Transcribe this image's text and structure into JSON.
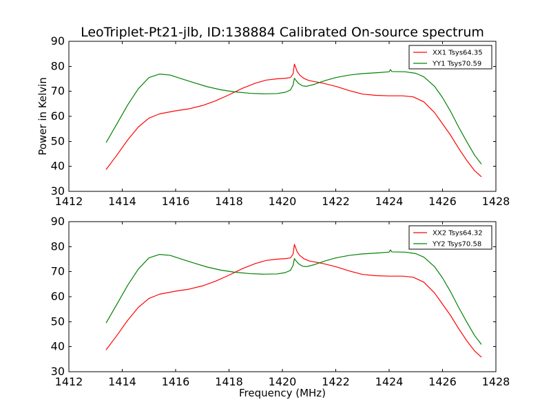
{
  "figure": {
    "title": "LeoTriplet-Pt21-jlb, ID:138884 Calibrated On-source spectrum"
  },
  "chart_data": [
    {
      "type": "line",
      "title": "LeoTriplet-Pt21-jlb, ID:138884 Calibrated On-source spectrum",
      "xlabel": "",
      "ylabel": "Power in Kelvin",
      "xlim": [
        1412,
        1428
      ],
      "ylim": [
        30,
        90
      ],
      "xticks": [
        1412,
        1414,
        1416,
        1418,
        1420,
        1422,
        1424,
        1426,
        1428
      ],
      "yticks": [
        30,
        40,
        50,
        60,
        70,
        80,
        90
      ],
      "legend_position": "top-right",
      "grid": false,
      "series": [
        {
          "name": "XX1 Tsys64.35",
          "color": "#ff0000",
          "x": [
            1413.4,
            1413.8,
            1414.2,
            1414.6,
            1415.0,
            1415.4,
            1416.0,
            1416.5,
            1417.0,
            1417.5,
            1418.0,
            1418.5,
            1419.0,
            1419.4,
            1419.8,
            1420.1,
            1420.3,
            1420.4,
            1420.45,
            1420.5,
            1420.55,
            1420.65,
            1420.8,
            1421.0,
            1421.5,
            1422.0,
            1422.5,
            1423.0,
            1423.5,
            1424.0,
            1424.5,
            1424.9,
            1425.3,
            1425.7,
            1426.0,
            1426.3,
            1426.6,
            1426.9,
            1427.2,
            1427.45
          ],
          "y": [
            38.8,
            44.5,
            50.5,
            55.7,
            59.3,
            61.0,
            62.2,
            63.0,
            64.3,
            66.2,
            68.6,
            71.2,
            73.3,
            74.5,
            75.0,
            75.2,
            75.5,
            77.0,
            80.9,
            79.5,
            78.0,
            76.5,
            75.2,
            74.3,
            73.3,
            72.0,
            70.3,
            68.9,
            68.4,
            68.2,
            68.2,
            67.8,
            65.8,
            61.5,
            57.0,
            52.5,
            47.3,
            42.5,
            38.3,
            35.9
          ]
        },
        {
          "name": "YY1 Tsys70.59",
          "color": "#008000",
          "x": [
            1413.4,
            1413.8,
            1414.2,
            1414.6,
            1415.0,
            1415.4,
            1415.8,
            1416.2,
            1416.7,
            1417.2,
            1417.7,
            1418.2,
            1418.8,
            1419.3,
            1419.8,
            1420.1,
            1420.3,
            1420.4,
            1420.45,
            1420.5,
            1420.6,
            1420.75,
            1420.9,
            1421.2,
            1421.6,
            1422.0,
            1422.5,
            1423.0,
            1423.5,
            1424.0,
            1424.05,
            1424.1,
            1424.6,
            1425.0,
            1425.3,
            1425.7,
            1426.0,
            1426.3,
            1426.6,
            1426.9,
            1427.2,
            1427.45
          ],
          "y": [
            49.6,
            57.0,
            64.5,
            71.0,
            75.5,
            76.9,
            76.5,
            75.1,
            73.4,
            71.8,
            70.6,
            69.8,
            69.2,
            69.0,
            69.1,
            69.6,
            70.5,
            72.5,
            75.2,
            74.5,
            73.2,
            72.2,
            72.0,
            72.8,
            74.3,
            75.5,
            76.5,
            77.1,
            77.4,
            77.8,
            78.7,
            77.9,
            77.8,
            77.2,
            75.8,
            72.0,
            67.5,
            62.0,
            55.8,
            50.0,
            44.5,
            41.0
          ]
        }
      ]
    },
    {
      "type": "line",
      "title": "",
      "xlabel": "Frequency (MHz)",
      "ylabel": "",
      "xlim": [
        1412,
        1428
      ],
      "ylim": [
        30,
        90
      ],
      "xticks": [
        1412,
        1414,
        1416,
        1418,
        1420,
        1422,
        1424,
        1426,
        1428
      ],
      "yticks": [
        30,
        40,
        50,
        60,
        70,
        80,
        90
      ],
      "legend_position": "top-right",
      "grid": false,
      "series": [
        {
          "name": "XX2 Tsys64.32",
          "color": "#ff0000",
          "x": [
            1413.4,
            1413.8,
            1414.2,
            1414.6,
            1415.0,
            1415.4,
            1416.0,
            1416.5,
            1417.0,
            1417.5,
            1418.0,
            1418.5,
            1419.0,
            1419.4,
            1419.8,
            1420.1,
            1420.3,
            1420.4,
            1420.45,
            1420.5,
            1420.55,
            1420.65,
            1420.8,
            1421.0,
            1421.5,
            1422.0,
            1422.5,
            1423.0,
            1423.5,
            1424.0,
            1424.5,
            1424.9,
            1425.3,
            1425.7,
            1426.0,
            1426.3,
            1426.6,
            1426.9,
            1427.2,
            1427.45
          ],
          "y": [
            38.8,
            44.5,
            50.5,
            55.7,
            59.3,
            61.0,
            62.2,
            63.0,
            64.3,
            66.2,
            68.6,
            71.2,
            73.3,
            74.5,
            75.0,
            75.2,
            75.5,
            77.0,
            80.9,
            79.5,
            78.0,
            76.5,
            75.2,
            74.3,
            73.3,
            72.0,
            70.3,
            68.9,
            68.4,
            68.2,
            68.2,
            67.8,
            65.8,
            61.5,
            57.0,
            52.5,
            47.3,
            42.5,
            38.3,
            35.9
          ]
        },
        {
          "name": "YY2 Tsys70.58",
          "color": "#008000",
          "x": [
            1413.4,
            1413.8,
            1414.2,
            1414.6,
            1415.0,
            1415.4,
            1415.8,
            1416.2,
            1416.7,
            1417.2,
            1417.7,
            1418.2,
            1418.8,
            1419.3,
            1419.8,
            1420.1,
            1420.3,
            1420.4,
            1420.45,
            1420.5,
            1420.6,
            1420.75,
            1420.9,
            1421.2,
            1421.6,
            1422.0,
            1422.5,
            1423.0,
            1423.5,
            1424.0,
            1424.05,
            1424.1,
            1424.6,
            1425.0,
            1425.3,
            1425.7,
            1426.0,
            1426.3,
            1426.6,
            1426.9,
            1427.2,
            1427.45
          ],
          "y": [
            49.6,
            57.0,
            64.5,
            71.0,
            75.5,
            76.9,
            76.5,
            75.1,
            73.4,
            71.8,
            70.6,
            69.8,
            69.2,
            69.0,
            69.1,
            69.6,
            70.5,
            72.5,
            75.2,
            74.5,
            73.2,
            72.2,
            72.0,
            72.8,
            74.3,
            75.5,
            76.5,
            77.1,
            77.4,
            77.8,
            78.7,
            77.9,
            77.8,
            77.2,
            75.8,
            72.0,
            67.5,
            62.0,
            55.8,
            50.0,
            44.5,
            41.0
          ]
        }
      ]
    }
  ]
}
